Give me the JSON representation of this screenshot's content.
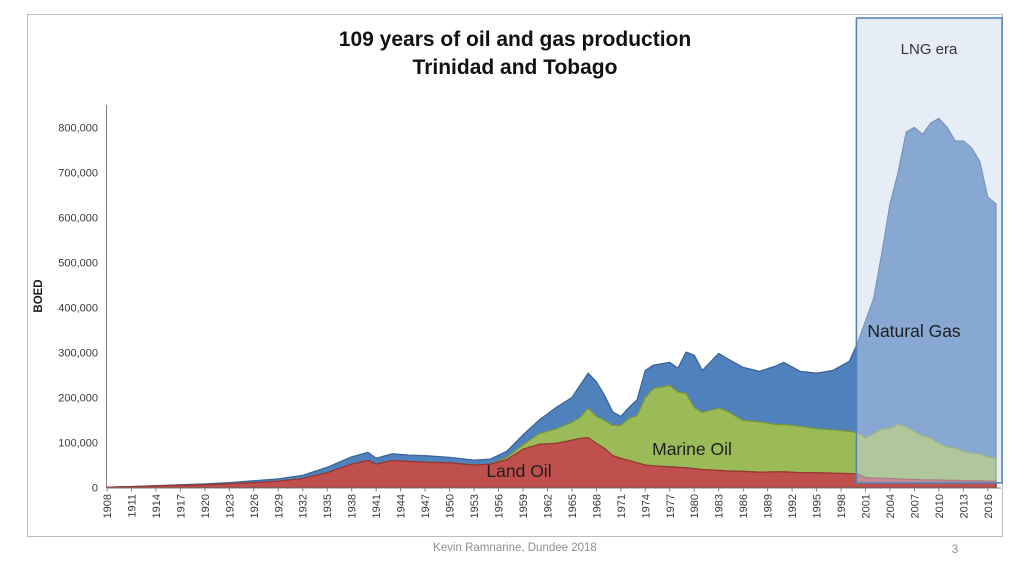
{
  "slide": {
    "footer": "Kevin Ramnarine, Dundee 2018",
    "page_number": "3"
  },
  "chart_data": {
    "type": "area",
    "stacked": true,
    "title": "109 years of oil and gas production",
    "subtitle": "Trinidad and Tobago",
    "ylabel": "BOED",
    "xlabel": "",
    "grid": false,
    "legend_position": "inline-labels",
    "ylim": [
      0,
      800000
    ],
    "y_ticks": [
      0,
      100000,
      200000,
      300000,
      400000,
      500000,
      600000,
      700000,
      800000
    ],
    "x_ticks": [
      1908,
      1911,
      1914,
      1917,
      1920,
      1923,
      1926,
      1929,
      1932,
      1935,
      1938,
      1941,
      1944,
      1947,
      1950,
      1953,
      1956,
      1959,
      1962,
      1965,
      1968,
      1971,
      1974,
      1977,
      1980,
      1983,
      1986,
      1989,
      1992,
      1995,
      1998,
      2001,
      2004,
      2007,
      2010,
      2013,
      2016
    ],
    "x_range": [
      1908,
      2017
    ],
    "annotation": {
      "label": "LNG era",
      "start_year": 2000,
      "end_year": 2017,
      "fill": "#c9d6ea",
      "fill_opacity": 0.45,
      "border": "#4f81bd"
    },
    "series": [
      {
        "name": "Land Oil",
        "fill": "#c0504d",
        "edge": "#963634"
      },
      {
        "name": "Marine Oil",
        "fill": "#9bbb59",
        "edge": "#7a9440"
      },
      {
        "name": "Natural Gas",
        "fill": "#4f81bd",
        "edge": "#3b6596"
      }
    ],
    "years": [
      1908,
      1911,
      1914,
      1917,
      1920,
      1923,
      1926,
      1929,
      1932,
      1935,
      1938,
      1940,
      1941,
      1943,
      1945,
      1947,
      1950,
      1953,
      1955,
      1957,
      1959,
      1961,
      1963,
      1965,
      1966,
      1967,
      1968,
      1969,
      1970,
      1971,
      1972,
      1973,
      1974,
      1975,
      1977,
      1978,
      1979,
      1980,
      1981,
      1983,
      1984,
      1986,
      1988,
      1990,
      1991,
      1993,
      1995,
      1997,
      1999,
      2000,
      2001,
      2002,
      2003,
      2004,
      2005,
      2006,
      2007,
      2008,
      2009,
      2010,
      2011,
      2012,
      2013,
      2014,
      2015,
      2016,
      2017
    ],
    "values": {
      "land_oil": [
        500,
        2000,
        3500,
        5000,
        6000,
        8000,
        11000,
        14000,
        20000,
        33000,
        52000,
        60000,
        52000,
        60000,
        58000,
        56000,
        55000,
        50000,
        52000,
        62000,
        85000,
        96000,
        98000,
        105000,
        109000,
        111000,
        98000,
        87000,
        71000,
        65000,
        60000,
        55000,
        50000,
        48000,
        46000,
        45000,
        44000,
        42000,
        40000,
        38000,
        37000,
        36000,
        34000,
        35000,
        35000,
        33000,
        33000,
        32000,
        31000,
        30000,
        22000,
        21000,
        21000,
        20000,
        19000,
        18000,
        18000,
        17000,
        17000,
        17000,
        16000,
        16000,
        15000,
        15000,
        15000,
        14000,
        14000
      ],
      "marine_oil": [
        0,
        0,
        0,
        0,
        0,
        0,
        0,
        0,
        0,
        0,
        0,
        0,
        0,
        0,
        0,
        0,
        0,
        0,
        0,
        5000,
        10000,
        24000,
        32000,
        40000,
        47000,
        65000,
        60000,
        62000,
        67000,
        73000,
        94000,
        105000,
        150000,
        172000,
        181000,
        167000,
        165000,
        136000,
        127000,
        138000,
        133000,
        113000,
        112000,
        105000,
        105000,
        103000,
        98000,
        96000,
        94000,
        92000,
        88000,
        99000,
        109000,
        112000,
        121000,
        117000,
        107000,
        98000,
        93000,
        81000,
        74000,
        72000,
        65000,
        62000,
        60000,
        54000,
        51000
      ],
      "natural_gas": [
        0,
        0,
        500,
        1000,
        2000,
        3000,
        4000,
        5000,
        7000,
        12000,
        16000,
        18000,
        13000,
        15000,
        14000,
        15000,
        12000,
        11000,
        11000,
        13000,
        22000,
        30000,
        47000,
        55000,
        71000,
        78000,
        77000,
        56000,
        30000,
        20000,
        24000,
        35000,
        60000,
        52000,
        51000,
        53000,
        92000,
        116000,
        93000,
        122000,
        117000,
        118000,
        112000,
        130000,
        138000,
        122000,
        123000,
        132000,
        155000,
        198000,
        260000,
        300000,
        390000,
        498000,
        560000,
        655000,
        675000,
        670000,
        700000,
        722000,
        710000,
        682000,
        690000,
        678000,
        650000,
        577000,
        565000
      ]
    }
  }
}
